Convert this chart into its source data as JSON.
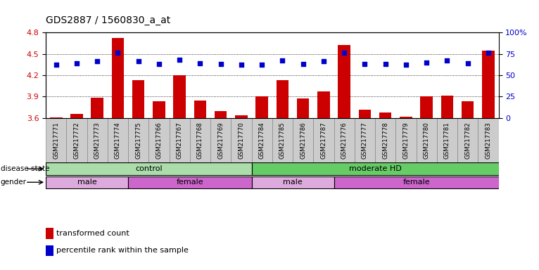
{
  "title": "GDS2887 / 1560830_a_at",
  "samples": [
    "GSM217771",
    "GSM217772",
    "GSM217773",
    "GSM217774",
    "GSM217775",
    "GSM217766",
    "GSM217767",
    "GSM217768",
    "GSM217769",
    "GSM217770",
    "GSM217784",
    "GSM217785",
    "GSM217786",
    "GSM217787",
    "GSM217776",
    "GSM217777",
    "GSM217778",
    "GSM217779",
    "GSM217780",
    "GSM217781",
    "GSM217782",
    "GSM217783"
  ],
  "transformed_count": [
    3.61,
    3.66,
    3.88,
    4.72,
    4.13,
    3.84,
    4.2,
    3.85,
    3.7,
    3.64,
    3.9,
    4.13,
    3.87,
    3.97,
    4.62,
    3.72,
    3.68,
    3.62,
    3.9,
    3.91,
    3.84,
    4.54
  ],
  "percentile_rank": [
    62,
    64,
    66,
    76,
    66,
    63,
    68,
    64,
    63,
    62,
    62,
    67,
    63,
    66,
    76,
    63,
    63,
    62,
    65,
    67,
    64,
    76
  ],
  "ylim_left": [
    3.6,
    4.8
  ],
  "ylim_right": [
    0,
    100
  ],
  "yticks_left": [
    3.6,
    3.9,
    4.2,
    4.5,
    4.8
  ],
  "yticks_right": [
    0,
    25,
    50,
    75,
    100
  ],
  "bar_color": "#cc0000",
  "dot_color": "#0000cc",
  "disease_state_groups": [
    {
      "label": "control",
      "start": 0,
      "end": 10,
      "color": "#aaddaa"
    },
    {
      "label": "moderate HD",
      "start": 10,
      "end": 22,
      "color": "#66cc66"
    }
  ],
  "gender_groups": [
    {
      "label": "male",
      "start": 0,
      "end": 4,
      "color": "#ddaadd"
    },
    {
      "label": "female",
      "start": 4,
      "end": 10,
      "color": "#cc66cc"
    },
    {
      "label": "male",
      "start": 10,
      "end": 14,
      "color": "#ddaadd"
    },
    {
      "label": "female",
      "start": 14,
      "end": 22,
      "color": "#cc66cc"
    }
  ],
  "legend_items": [
    {
      "label": "transformed count",
      "color": "#cc0000"
    },
    {
      "label": "percentile rank within the sample",
      "color": "#0000cc"
    }
  ],
  "bar_baseline": 3.6,
  "background_color": "#ffffff",
  "title_fontsize": 10,
  "sample_box_color": "#cccccc",
  "sample_box_edge": "#888888"
}
